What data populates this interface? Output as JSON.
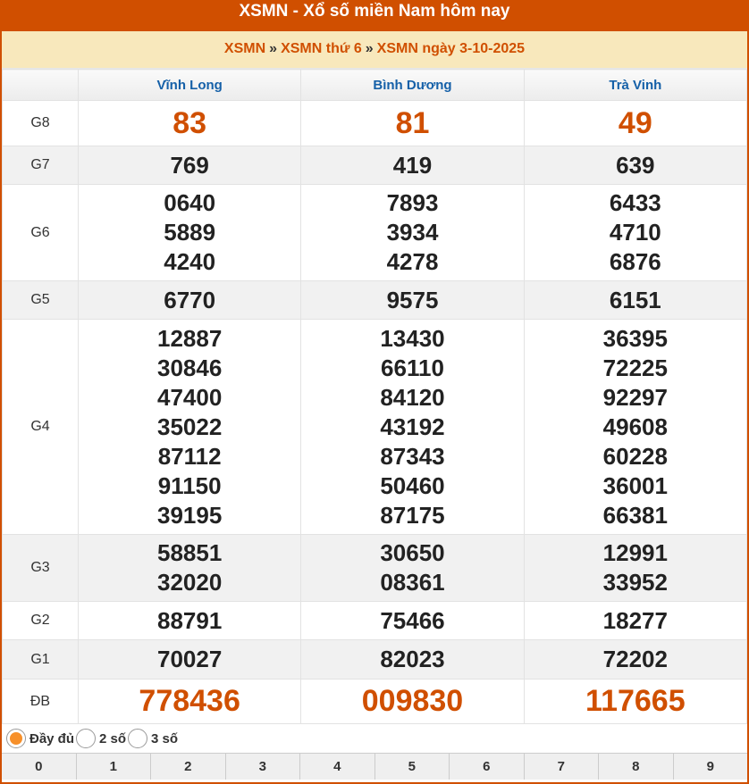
{
  "title": "XSMN - Xổ số miền Nam hôm nay",
  "breadcrumb": [
    "XSMN",
    "XSMN thứ 6",
    "XSMN ngày 3-10-2025"
  ],
  "breadcrumb_sep": "»",
  "provinces": [
    "Vĩnh Long",
    "Bình Dương",
    "Trà Vinh"
  ],
  "prizes": [
    {
      "label": "G8",
      "values": [
        [
          "83"
        ],
        [
          "81"
        ],
        [
          "49"
        ]
      ]
    },
    {
      "label": "G7",
      "values": [
        [
          "769"
        ],
        [
          "419"
        ],
        [
          "639"
        ]
      ]
    },
    {
      "label": "G6",
      "values": [
        [
          "0640",
          "5889",
          "4240"
        ],
        [
          "7893",
          "3934",
          "4278"
        ],
        [
          "6433",
          "4710",
          "6876"
        ]
      ]
    },
    {
      "label": "G5",
      "values": [
        [
          "6770"
        ],
        [
          "9575"
        ],
        [
          "6151"
        ]
      ]
    },
    {
      "label": "G4",
      "values": [
        [
          "12887",
          "30846",
          "47400",
          "35022",
          "87112",
          "91150",
          "39195"
        ],
        [
          "13430",
          "66110",
          "84120",
          "43192",
          "87343",
          "50460",
          "87175"
        ],
        [
          "36395",
          "72225",
          "92297",
          "49608",
          "60228",
          "36001",
          "66381"
        ]
      ]
    },
    {
      "label": "G3",
      "values": [
        [
          "58851",
          "32020"
        ],
        [
          "30650",
          "08361"
        ],
        [
          "12991",
          "33952"
        ]
      ]
    },
    {
      "label": "G2",
      "values": [
        [
          "88791"
        ],
        [
          "75466"
        ],
        [
          "18277"
        ]
      ]
    },
    {
      "label": "G1",
      "values": [
        [
          "70027"
        ],
        [
          "82023"
        ],
        [
          "72202"
        ]
      ]
    },
    {
      "label": "ĐB",
      "values": [
        [
          "778436"
        ],
        [
          "009830"
        ],
        [
          "117665"
        ]
      ]
    }
  ],
  "display_options": [
    {
      "label": "Đầy đủ",
      "selected": true
    },
    {
      "label": "2 số",
      "selected": false
    },
    {
      "label": "3 số",
      "selected": false
    }
  ],
  "digits": [
    "0",
    "1",
    "2",
    "3",
    "4",
    "5",
    "6",
    "7",
    "8",
    "9"
  ],
  "colors": {
    "brand": "#d04f00",
    "breadcrumb_bg": "#f8e8bc",
    "province": "#1560a8",
    "radio_selected": "#f7902a"
  }
}
